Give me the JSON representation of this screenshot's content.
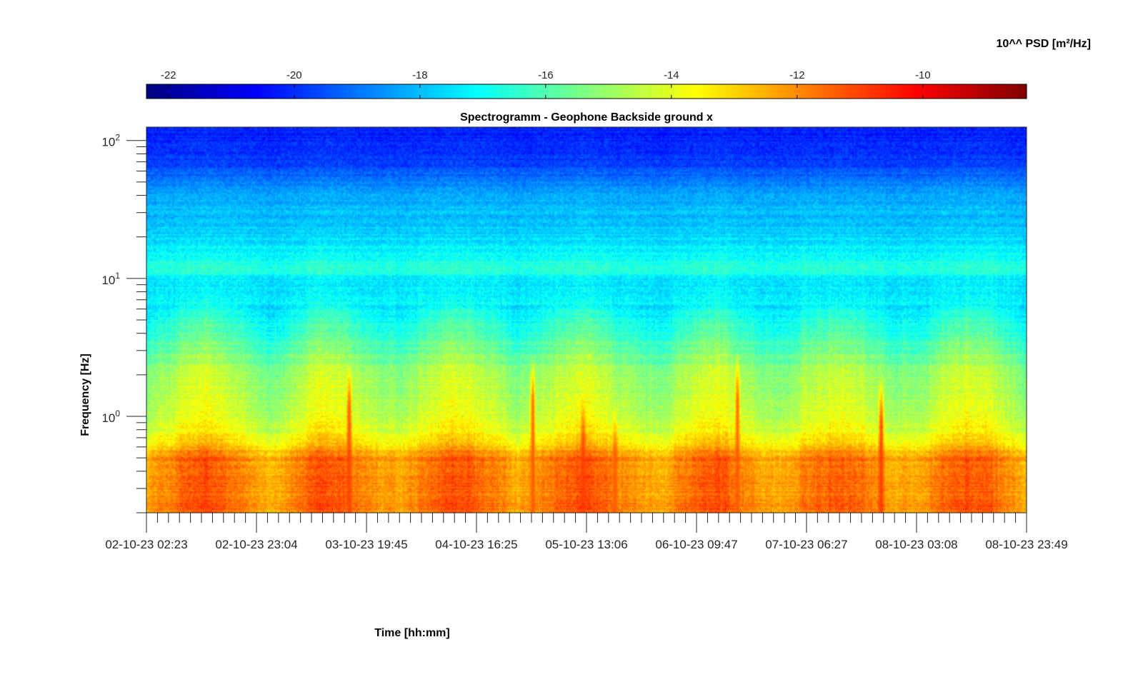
{
  "chart_data": {
    "type": "heatmap",
    "title": "Spectrogramm - Geophone Backside ground x",
    "xlabel": "Time [hh:mm]",
    "ylabel": "Frequency [Hz]",
    "y_scale": "log",
    "ylim": [
      0.2,
      125
    ],
    "y_ticks": [
      {
        "value": 1,
        "base": "10",
        "exp": "0"
      },
      {
        "value": 10,
        "base": "10",
        "exp": "1"
      },
      {
        "value": 100,
        "base": "10",
        "exp": "2"
      }
    ],
    "x_start": "02-10-23 02:23",
    "x_end": "08-10-23 23:49",
    "x_tick_labels": [
      "02-10-23 02:23",
      "02-10-23 23:04",
      "03-10-23 19:45",
      "04-10-23 16:25",
      "05-10-23 13:06",
      "06-10-23 09:47",
      "07-10-23 06:27",
      "08-10-23 03:08",
      "08-10-23 23:49"
    ],
    "minor_ticks_per_major": 9,
    "colorbar": {
      "label": "10^^ PSD [m²/Hz]",
      "colormap": "jet",
      "range": [
        -22.35,
        -8.35
      ],
      "tick_labels": [
        "-22",
        "-20",
        "-18",
        "-16",
        "-14",
        "-12",
        "-10"
      ],
      "tick_values": [
        -22,
        -20,
        -18,
        -16,
        -14,
        -12,
        -10
      ],
      "location": "top"
    },
    "psd_profile_log10": [
      {
        "freq_hz": 0.2,
        "psd": -11.8
      },
      {
        "freq_hz": 0.5,
        "psd": -11.9
      },
      {
        "freq_hz": 0.7,
        "psd": -13.6
      },
      {
        "freq_hz": 1.0,
        "psd": -14.3
      },
      {
        "freq_hz": 2.0,
        "psd": -14.8
      },
      {
        "freq_hz": 3.0,
        "psd": -15.6
      },
      {
        "freq_hz": 6.0,
        "psd": -17.1
      },
      {
        "freq_hz": 10.0,
        "psd": -17.4
      },
      {
        "freq_hz": 11.5,
        "psd": -16.4
      },
      {
        "freq_hz": 20.0,
        "psd": -17.7
      },
      {
        "freq_hz": 40.0,
        "psd": -18.3
      },
      {
        "freq_hz": 70.0,
        "psd": -19.8
      },
      {
        "freq_hz": 125.0,
        "psd": -20.2
      }
    ],
    "transient_events": [
      {
        "time": "03-10-23 16:30",
        "peak_psd": -11.0,
        "top_freq_hz": 2.5
      },
      {
        "time": "04-10-23 14:30",
        "peak_psd": -11.5,
        "top_freq_hz": 0.7
      },
      {
        "time": "05-10-23 03:00",
        "peak_psd": -11.3,
        "top_freq_hz": 2.8
      },
      {
        "time": "05-10-23 12:30",
        "peak_psd": -11.0,
        "top_freq_hz": 1.5
      },
      {
        "time": "05-10-23 18:30",
        "peak_psd": -11.3,
        "top_freq_hz": 1.2
      },
      {
        "time": "06-10-23 17:30",
        "peak_psd": -11.3,
        "top_freq_hz": 3.0
      },
      {
        "time": "07-10-23 20:30",
        "peak_psd": -10.8,
        "top_freq_hz": 2.0
      }
    ]
  }
}
